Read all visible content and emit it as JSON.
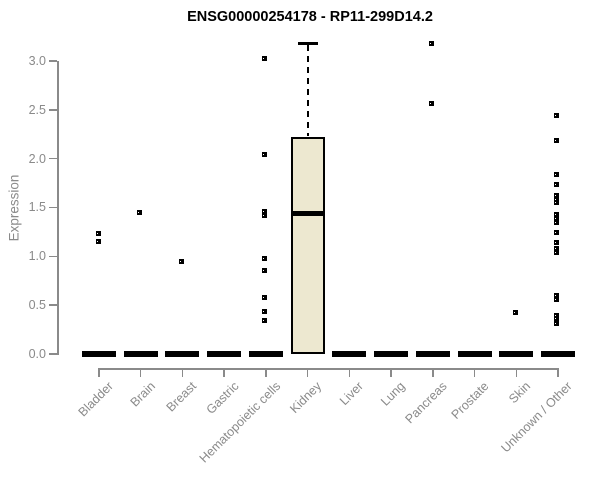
{
  "chart_data": {
    "type": "boxplot",
    "title": "ENSG00000254178 - RP11-299D14.2",
    "ylabel": "Expression",
    "xlabel": "",
    "ylim": [
      0,
      3.2
    ],
    "yticks": [
      0.0,
      0.5,
      1.0,
      1.5,
      2.0,
      2.5,
      3.0
    ],
    "grid": false,
    "legend": "none",
    "categories": [
      "Bladder",
      "Brain",
      "Breast",
      "Gastric",
      "Hematopoietic cells",
      "Kidney",
      "Liver",
      "Lung",
      "Pancreas",
      "Prostate",
      "Skin",
      "Unknown / Other"
    ],
    "boxes": [
      {
        "category": "Bladder",
        "q1": 0,
        "median": 0,
        "q3": 0,
        "outliers": [
          1.23,
          1.15
        ]
      },
      {
        "category": "Brain",
        "q1": 0,
        "median": 0,
        "q3": 0,
        "outliers": [
          1.45
        ]
      },
      {
        "category": "Breast",
        "q1": 0,
        "median": 0,
        "q3": 0,
        "outliers": [
          0.95
        ]
      },
      {
        "category": "Gastric",
        "q1": 0,
        "median": 0,
        "q3": 0,
        "outliers": []
      },
      {
        "category": "Hematopoietic cells",
        "q1": 0,
        "median": 0,
        "q3": 0,
        "outliers": [
          3.03,
          2.04,
          1.46,
          1.42,
          0.98,
          0.86,
          0.58,
          0.44,
          0.34
        ]
      },
      {
        "category": "Kidney",
        "q1": 0,
        "median": 1.44,
        "q3": 2.22,
        "whisker_high": 3.18,
        "outliers": []
      },
      {
        "category": "Liver",
        "q1": 0,
        "median": 0,
        "q3": 0,
        "outliers": []
      },
      {
        "category": "Lung",
        "q1": 0,
        "median": 0,
        "q3": 0,
        "outliers": []
      },
      {
        "category": "Pancreas",
        "q1": 0,
        "median": 0,
        "q3": 0,
        "outliers": [
          3.18,
          2.56
        ]
      },
      {
        "category": "Prostate",
        "q1": 0,
        "median": 0,
        "q3": 0,
        "outliers": []
      },
      {
        "category": "Skin",
        "q1": 0,
        "median": 0,
        "q3": 0,
        "outliers": [
          0.43
        ]
      },
      {
        "category": "Unknown / Other",
        "q1": 0,
        "median": 0,
        "q3": 0,
        "outliers": [
          2.44,
          2.19,
          1.84,
          1.74,
          1.62,
          1.58,
          1.55,
          1.43,
          1.39,
          1.35,
          1.24,
          1.14,
          1.08,
          1.04,
          0.6,
          0.56,
          0.39,
          0.36,
          0.31
        ]
      }
    ],
    "colors": {
      "box_fill": "#EDE8D0",
      "box_stroke": "#000000",
      "point": "#000000",
      "axis": "#8A8A8A",
      "text": "#8A8A8A",
      "title": "#000000",
      "background": "#FFFFFF"
    }
  }
}
